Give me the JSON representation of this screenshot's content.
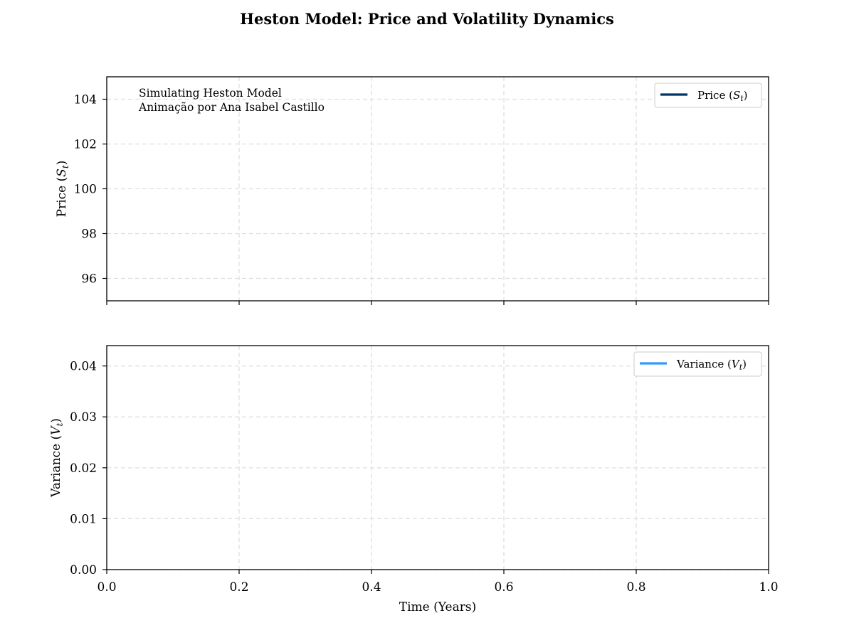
{
  "chart_data": {
    "title": "Heston Model: Price and Volatility Dynamics",
    "panels": [
      {
        "type": "line",
        "ylabel": "Price ($S_t$)",
        "ylabel_plain": "Price (S",
        "ylabel_sub": "t",
        "ylim": [
          95,
          105
        ],
        "yticks": [
          96,
          98,
          100,
          102,
          104
        ],
        "ytick_labels": [
          "96",
          "98",
          "100",
          "102",
          "104"
        ],
        "xlim": [
          0,
          1
        ],
        "xticks": [
          0,
          0.2,
          0.4,
          0.6,
          0.8,
          1.0
        ],
        "show_xtick_labels": false,
        "grid": true,
        "series": [
          {
            "name": "Price (S_t)",
            "legend_prefix": "Price (",
            "legend_var": "S",
            "legend_sub": "t",
            "color": "#003366",
            "x": [],
            "y": []
          }
        ],
        "legend": "top-right",
        "annotation": [
          "Simulating Heston Model",
          "Animação por Ana Isabel Castillo"
        ]
      },
      {
        "type": "line",
        "ylabel": "Variance ($V_t$)",
        "ylabel_plain": "Variance (V",
        "ylabel_sub": "t",
        "ylim": [
          0,
          0.044
        ],
        "yticks": [
          0,
          0.01,
          0.02,
          0.03,
          0.04
        ],
        "ytick_labels": [
          "0.00",
          "0.01",
          "0.02",
          "0.03",
          "0.04"
        ],
        "xlim": [
          0,
          1
        ],
        "xticks": [
          0,
          0.2,
          0.4,
          0.6,
          0.8,
          1.0
        ],
        "xtick_labels": [
          "0.0",
          "0.2",
          "0.4",
          "0.6",
          "0.8",
          "1.0"
        ],
        "show_xtick_labels": true,
        "xlabel": "Time (Years)",
        "grid": true,
        "series": [
          {
            "name": "Variance (V_t)",
            "legend_prefix": "Variance (",
            "legend_var": "V",
            "legend_sub": "t",
            "color": "#3399ff",
            "x": [],
            "y": []
          }
        ],
        "legend": "top-right"
      }
    ]
  }
}
